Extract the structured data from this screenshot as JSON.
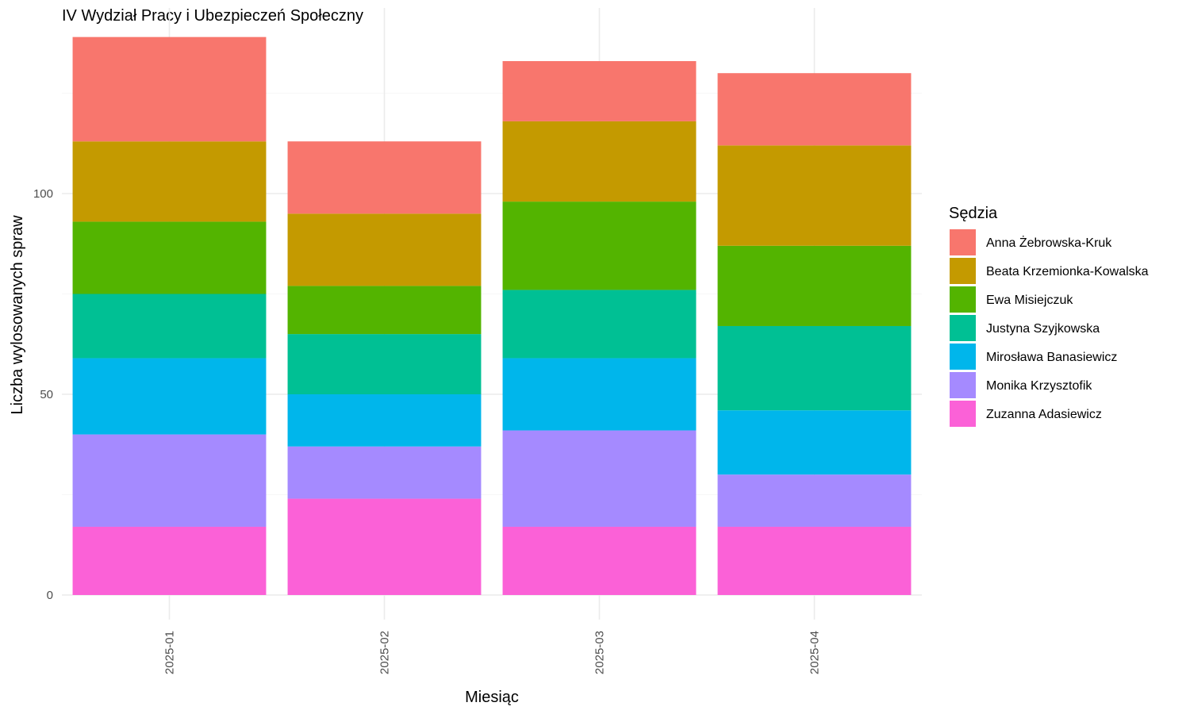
{
  "chart_data": {
    "type": "bar",
    "stacked": true,
    "title": "IV Wydział Pracy i Ubezpieczeń Społeczny",
    "xlabel": "Miesiąc",
    "ylabel": "Liczba wylosowanych spraw",
    "categories": [
      "2025-01",
      "2025-02",
      "2025-03",
      "2025-04"
    ],
    "ylim": [
      0,
      140
    ],
    "yticks": [
      0,
      50,
      100
    ],
    "grid": true,
    "legend": {
      "title": "Sędzia",
      "position": "right"
    },
    "series": [
      {
        "name": "Zuzanna Adasiewicz",
        "color": "#FB61D7",
        "values": [
          17,
          24,
          17,
          17
        ]
      },
      {
        "name": "Monika Krzysztofik",
        "color": "#A58AFF",
        "values": [
          23,
          13,
          24,
          13
        ]
      },
      {
        "name": "Mirosława Banasiewicz",
        "color": "#00B6EB",
        "values": [
          19,
          13,
          18,
          16
        ]
      },
      {
        "name": "Justyna Szyjkowska",
        "color": "#00C094",
        "values": [
          16,
          15,
          17,
          21
        ]
      },
      {
        "name": "Ewa Misiejczuk",
        "color": "#53B400",
        "values": [
          18,
          12,
          22,
          20
        ]
      },
      {
        "name": "Beata Krzemionka-Kowalska",
        "color": "#C49A00",
        "values": [
          20,
          18,
          20,
          25
        ]
      },
      {
        "name": "Anna Żebrowska-Kruk",
        "color": "#F8766D",
        "values": [
          26,
          18,
          15,
          18
        ]
      }
    ]
  }
}
